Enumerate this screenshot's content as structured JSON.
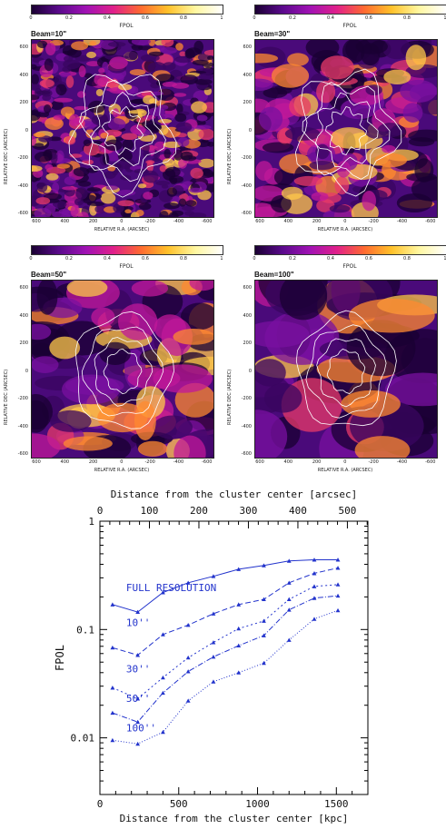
{
  "colorbar": {
    "ticks": [
      "0",
      "0.2",
      "0.4",
      "0.6",
      "0.8",
      "1"
    ],
    "label": "FPOL",
    "gradient": [
      "#1a0033",
      "#5a0a8c",
      "#a012b4",
      "#e0208a",
      "#ff6a30",
      "#ffc12a",
      "#fff7a0",
      "#ffffff"
    ]
  },
  "maps": [
    {
      "beam": "Beam=10\"",
      "smooth": 1
    },
    {
      "beam": "Beam=30\"",
      "smooth": 2
    },
    {
      "beam": "Beam=50\"",
      "smooth": 3
    },
    {
      "beam": "Beam=100\"",
      "smooth": 4
    }
  ],
  "map_axes": {
    "xlabel": "RELATIVE R.A. (ARCSEC)",
    "ylabel": "RELATIVE DEC (ARCSEC)",
    "xticks": [
      "600",
      "400",
      "200",
      "0",
      "-200",
      "-400",
      "-600"
    ],
    "yticks": [
      "600",
      "400",
      "200",
      "0",
      "-200",
      "-400",
      "-600"
    ]
  },
  "chart_data": {
    "type": "line",
    "xlabel": "Distance from the cluster center [kpc]",
    "x2label": "Distance from the cluster center [arcsec]",
    "ylabel": "FPOL",
    "xlim": [
      0,
      1700
    ],
    "ylim": [
      0.003,
      1
    ],
    "yscale": "log",
    "xticks": [
      0,
      500,
      1000,
      1500
    ],
    "x2ticks": [
      0,
      100,
      200,
      300,
      400,
      500
    ],
    "yticks": [
      {
        "v": 1,
        "label": "1"
      },
      {
        "v": 0.1,
        "label": "0.1"
      },
      {
        "v": 0.01,
        "label": "0.01"
      }
    ],
    "x": [
      80,
      240,
      400,
      560,
      720,
      880,
      1040,
      1200,
      1360,
      1510
    ],
    "series": [
      {
        "name": "FULL RESOLUTION",
        "dash": "",
        "values": [
          0.17,
          0.145,
          0.22,
          0.27,
          0.31,
          0.36,
          0.39,
          0.43,
          0.44,
          0.44
        ]
      },
      {
        "name": "10''",
        "dash": "6,3",
        "values": [
          0.068,
          0.058,
          0.09,
          0.11,
          0.14,
          0.17,
          0.19,
          0.27,
          0.33,
          0.37
        ]
      },
      {
        "name": "30''",
        "dash": "2,3",
        "values": [
          0.029,
          0.023,
          0.036,
          0.055,
          0.076,
          0.102,
          0.12,
          0.19,
          0.25,
          0.26
        ]
      },
      {
        "name": "50''",
        "dash": "6,2,1,2",
        "values": [
          0.017,
          0.014,
          0.026,
          0.041,
          0.056,
          0.071,
          0.088,
          0.152,
          0.195,
          0.205
        ]
      },
      {
        "name": "100''",
        "dash": "1,2",
        "values": [
          0.0095,
          0.0088,
          0.0113,
          0.022,
          0.033,
          0.04,
          0.049,
          0.08,
          0.125,
          0.15
        ]
      }
    ]
  }
}
